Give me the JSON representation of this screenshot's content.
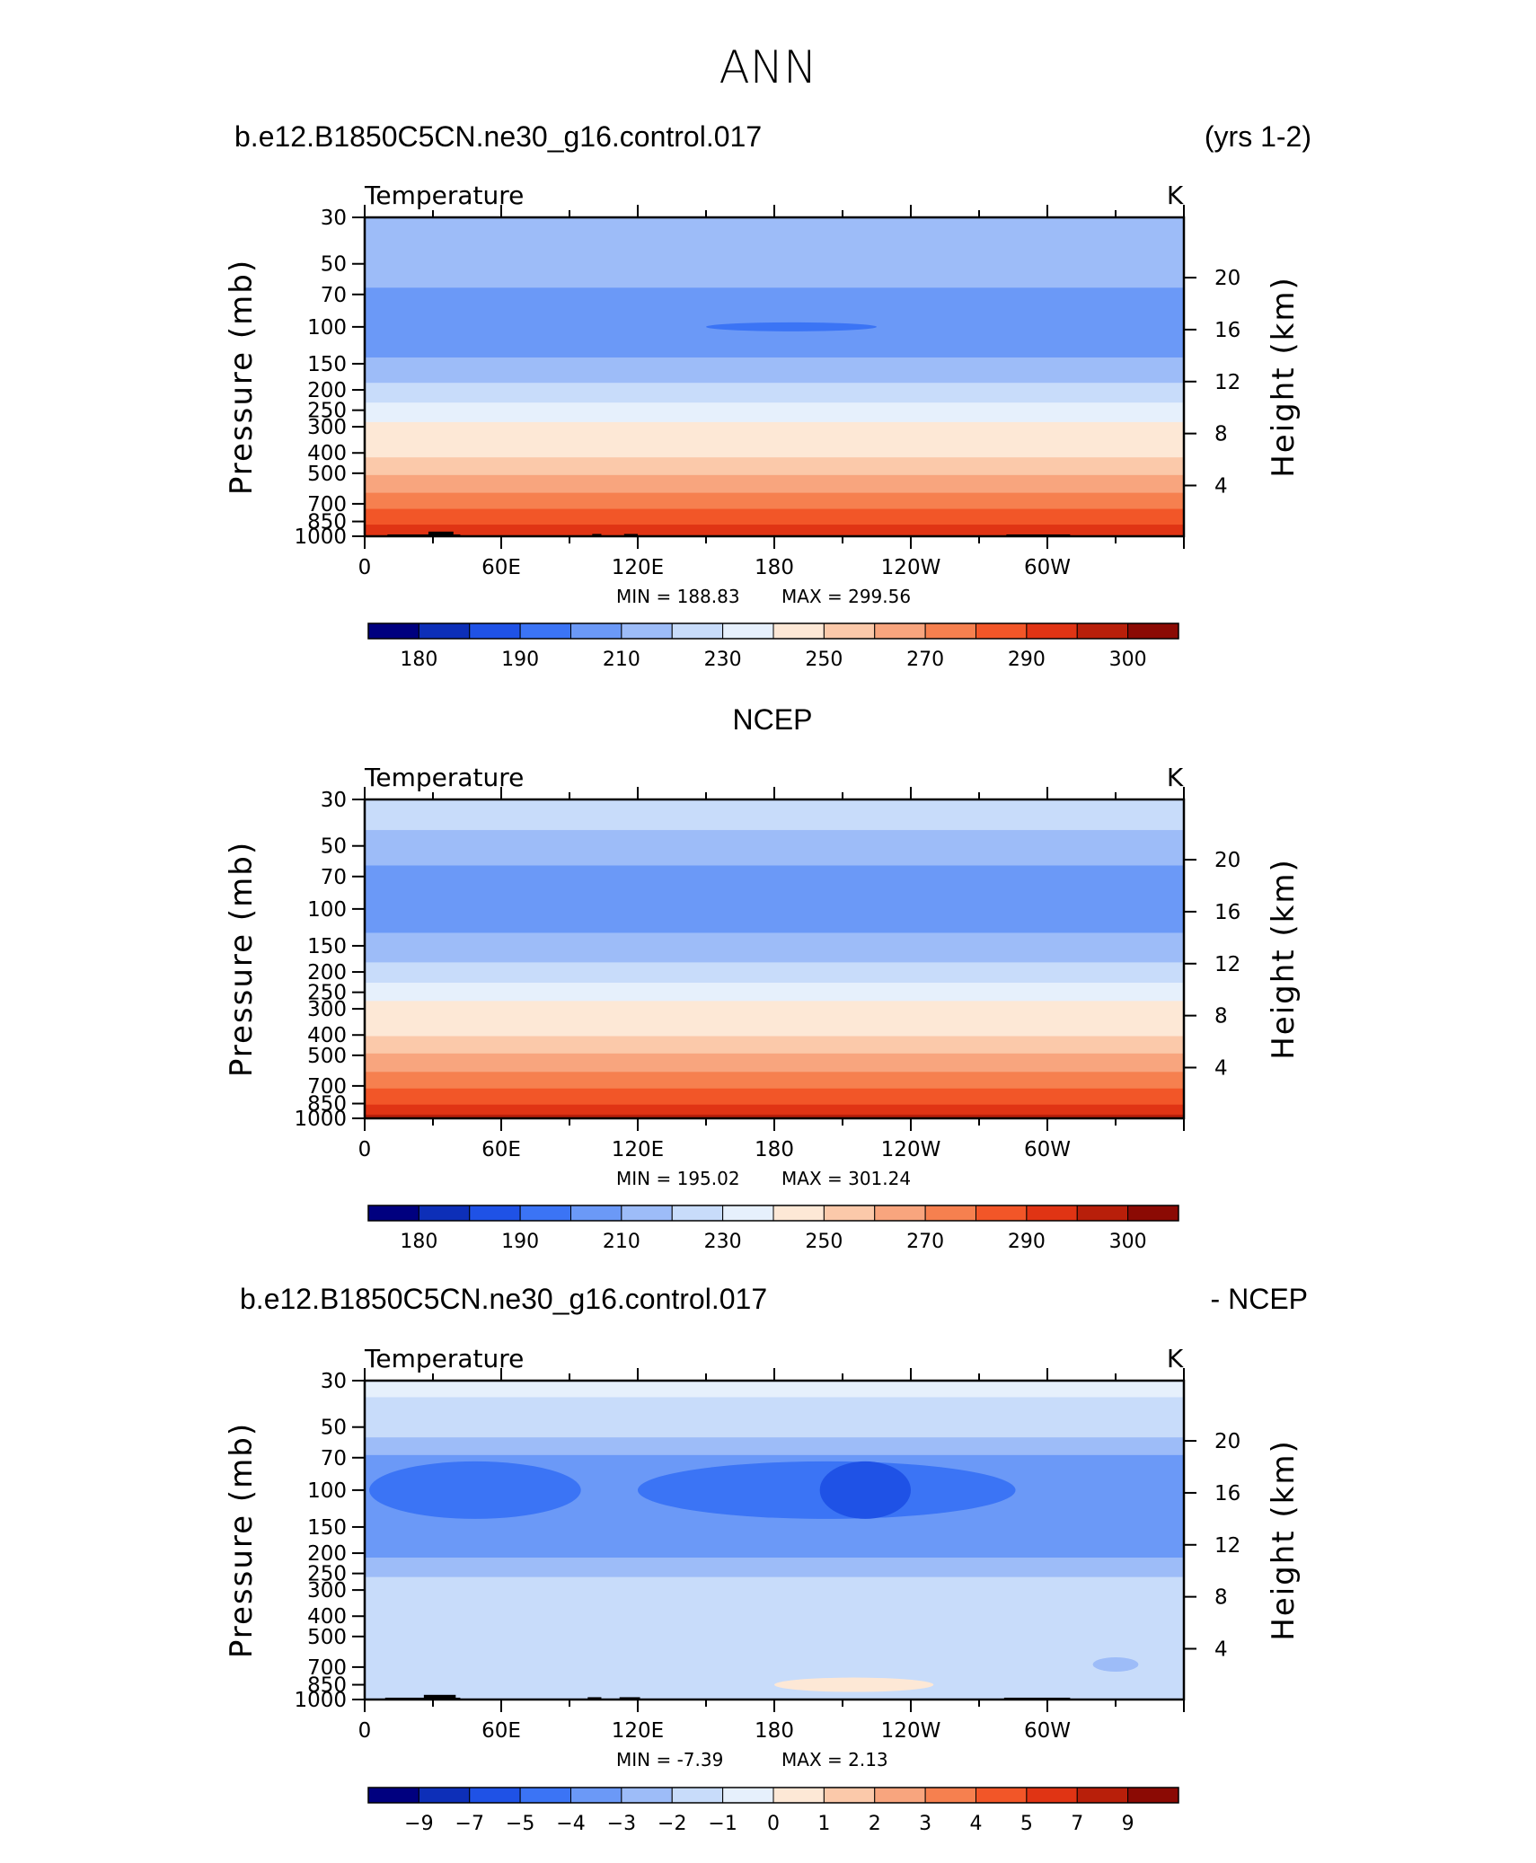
{
  "figure_title": "ANN",
  "chart_data": [
    {
      "type": "contour",
      "case_left": "b.e12.B1850C5CN.ne30_g16.control.017",
      "case_right": "(yrs 1-2)",
      "variable": "Temperature",
      "units": "K",
      "ylabel": "Pressure (mb)",
      "ylabel_right": "Height (km)",
      "pressure_ticks": [
        "30",
        "50",
        "70",
        "100",
        "150",
        "200",
        "250",
        "300",
        "400",
        "500",
        "700",
        "850",
        "1000"
      ],
      "height_ticks": [
        "20",
        "16",
        "12",
        "8",
        "4"
      ],
      "x_ticks": [
        "0",
        "60E",
        "120E",
        "180",
        "120W",
        "60W"
      ],
      "min_text": "MIN = 188.83",
      "max_text": "MAX = 299.56",
      "min": 188.83,
      "max": 299.56,
      "colorbar_labels": [
        "180",
        "190",
        "210",
        "230",
        "250",
        "270",
        "290",
        "300"
      ],
      "colorbar_colors": [
        "#00007f",
        "#0d2fb8",
        "#1f52e6",
        "#3b74f5",
        "#6b99f7",
        "#9dbcf8",
        "#c8dcfa",
        "#e6f0fc",
        "#fde8d6",
        "#fbc9aa",
        "#f8a57e",
        "#f6804f",
        "#f25628",
        "#e03414",
        "#b81f0a",
        "#8b0a04"
      ],
      "layers": [
        {
          "p_top": 30,
          "p_bot": 40,
          "temperature": 216
        },
        {
          "p_top": 40,
          "p_bot": 65,
          "temperature": 212
        },
        {
          "p_top": 65,
          "p_bot": 140,
          "temperature": 202
        },
        {
          "p_top": 140,
          "p_bot": 185,
          "temperature": 212
        },
        {
          "p_top": 185,
          "p_bot": 230,
          "temperature": 222
        },
        {
          "p_top": 230,
          "p_bot": 285,
          "temperature": 232
        },
        {
          "p_top": 285,
          "p_bot": 345,
          "temperature": 242
        },
        {
          "p_top": 345,
          "p_bot": 420,
          "temperature": 248
        },
        {
          "p_top": 420,
          "p_bot": 510,
          "temperature": 256
        },
        {
          "p_top": 510,
          "p_bot": 620,
          "temperature": 264
        },
        {
          "p_top": 620,
          "p_bot": 740,
          "temperature": 272
        },
        {
          "p_top": 740,
          "p_bot": 880,
          "temperature": 282
        },
        {
          "p_top": 880,
          "p_bot": 1000,
          "temperature": 292
        }
      ],
      "anomalies": [
        {
          "p": 100,
          "lon_start": 150,
          "lon_end": 225,
          "temperature": 190
        }
      ],
      "topography": [
        {
          "lon_start": 10,
          "lon_end": 42,
          "p_top": 980
        },
        {
          "lon_start": 28,
          "lon_end": 39,
          "p_top": 950
        },
        {
          "lon_start": 100,
          "lon_end": 104,
          "p_top": 975
        },
        {
          "lon_start": 114,
          "lon_end": 120,
          "p_top": 975
        },
        {
          "lon_start": 282,
          "lon_end": 310,
          "p_top": 980
        }
      ]
    },
    {
      "type": "contour",
      "case_center": "NCEP",
      "variable": "Temperature",
      "units": "K",
      "ylabel": "Pressure (mb)",
      "ylabel_right": "Height (km)",
      "pressure_ticks": [
        "30",
        "50",
        "70",
        "100",
        "150",
        "200",
        "250",
        "300",
        "400",
        "500",
        "700",
        "850",
        "1000"
      ],
      "height_ticks": [
        "20",
        "16",
        "12",
        "8",
        "4"
      ],
      "x_ticks": [
        "0",
        "60E",
        "120E",
        "180",
        "120W",
        "60W"
      ],
      "min_text": "MIN = 195.02",
      "max_text": "MAX = 301.24",
      "min": 195.02,
      "max": 301.24,
      "colorbar_labels": [
        "180",
        "190",
        "210",
        "230",
        "250",
        "270",
        "290",
        "300"
      ],
      "colorbar_colors": [
        "#00007f",
        "#0d2fb8",
        "#1f52e6",
        "#3b74f5",
        "#6b99f7",
        "#9dbcf8",
        "#c8dcfa",
        "#e6f0fc",
        "#fde8d6",
        "#fbc9aa",
        "#f8a57e",
        "#f6804f",
        "#f25628",
        "#e03414",
        "#b81f0a",
        "#8b0a04"
      ],
      "layers": [
        {
          "p_top": 30,
          "p_bot": 42,
          "temperature": 222
        },
        {
          "p_top": 42,
          "p_bot": 62,
          "temperature": 212
        },
        {
          "p_top": 62,
          "p_bot": 130,
          "temperature": 202
        },
        {
          "p_top": 130,
          "p_bot": 180,
          "temperature": 212
        },
        {
          "p_top": 180,
          "p_bot": 225,
          "temperature": 222
        },
        {
          "p_top": 225,
          "p_bot": 275,
          "temperature": 232
        },
        {
          "p_top": 275,
          "p_bot": 335,
          "temperature": 242
        },
        {
          "p_top": 335,
          "p_bot": 405,
          "temperature": 248
        },
        {
          "p_top": 405,
          "p_bot": 490,
          "temperature": 256
        },
        {
          "p_top": 490,
          "p_bot": 600,
          "temperature": 264
        },
        {
          "p_top": 600,
          "p_bot": 720,
          "temperature": 272
        },
        {
          "p_top": 720,
          "p_bot": 860,
          "temperature": 282
        },
        {
          "p_top": 860,
          "p_bot": 960,
          "temperature": 292
        },
        {
          "p_top": 960,
          "p_bot": 1000,
          "temperature": 298
        }
      ],
      "anomalies": [],
      "topography": []
    },
    {
      "type": "contour",
      "case_left": "b.e12.B1850C5CN.ne30_g16.control.017",
      "case_right": "- NCEP",
      "variable": "Temperature",
      "units": "K",
      "ylabel": "Pressure (mb)",
      "ylabel_right": "Height (km)",
      "pressure_ticks": [
        "30",
        "50",
        "70",
        "100",
        "150",
        "200",
        "250",
        "300",
        "400",
        "500",
        "700",
        "850",
        "1000"
      ],
      "height_ticks": [
        "20",
        "16",
        "12",
        "8",
        "4"
      ],
      "x_ticks": [
        "0",
        "60E",
        "120E",
        "180",
        "120W",
        "60W"
      ],
      "min_text": "MIN = -7.39",
      "max_text": "MAX = 2.13",
      "min": -7.39,
      "max": 2.13,
      "colorbar_labels": [
        "−9",
        "−7",
        "−5",
        "−4",
        "−3",
        "−2",
        "−1",
        "0",
        "1",
        "2",
        "3",
        "4",
        "5",
        "7",
        "9"
      ],
      "colorbar_colors": [
        "#00007f",
        "#0d2fb8",
        "#1f52e6",
        "#3b74f5",
        "#6b99f7",
        "#9dbcf8",
        "#c8dcfa",
        "#e6f0fc",
        "#fde8d6",
        "#fbc9aa",
        "#f8a57e",
        "#f6804f",
        "#f25628",
        "#e03414",
        "#b81f0a",
        "#8b0a04"
      ],
      "layers": [
        {
          "p_top": 30,
          "p_bot": 36,
          "temperature_diff": -0.5
        },
        {
          "p_top": 36,
          "p_bot": 56,
          "temperature_diff": -1.5
        },
        {
          "p_top": 56,
          "p_bot": 68,
          "temperature_diff": -2.5
        },
        {
          "p_top": 68,
          "p_bot": 210,
          "temperature_diff": -3.5
        },
        {
          "p_top": 210,
          "p_bot": 260,
          "temperature_diff": -2.5
        },
        {
          "p_top": 260,
          "p_bot": 400,
          "temperature_diff": -1.5
        },
        {
          "p_top": 400,
          "p_bot": 1000,
          "temperature_diff": -1.2
        }
      ],
      "anomalies": [
        {
          "p": 100,
          "lon_start": 2,
          "lon_end": 95,
          "temperature_diff": -4.5
        },
        {
          "p": 100,
          "lon_start": 120,
          "lon_end": 286,
          "temperature_diff": -4.5
        },
        {
          "p": 100,
          "lon_start": 200,
          "lon_end": 240,
          "temperature_diff": -5.5
        },
        {
          "p": 850,
          "lon_start": 180,
          "lon_end": 250,
          "temperature_diff": 0.5
        },
        {
          "p": 680,
          "lon_start": 320,
          "lon_end": 340,
          "temperature_diff": -2.5
        }
      ],
      "topography": [
        {
          "lon_start": 9,
          "lon_end": 42,
          "p_top": 980
        },
        {
          "lon_start": 26,
          "lon_end": 40,
          "p_top": 950
        },
        {
          "lon_start": 98,
          "lon_end": 104,
          "p_top": 975
        },
        {
          "lon_start": 112,
          "lon_end": 121,
          "p_top": 975
        },
        {
          "lon_start": 281,
          "lon_end": 310,
          "p_top": 980
        }
      ]
    }
  ]
}
